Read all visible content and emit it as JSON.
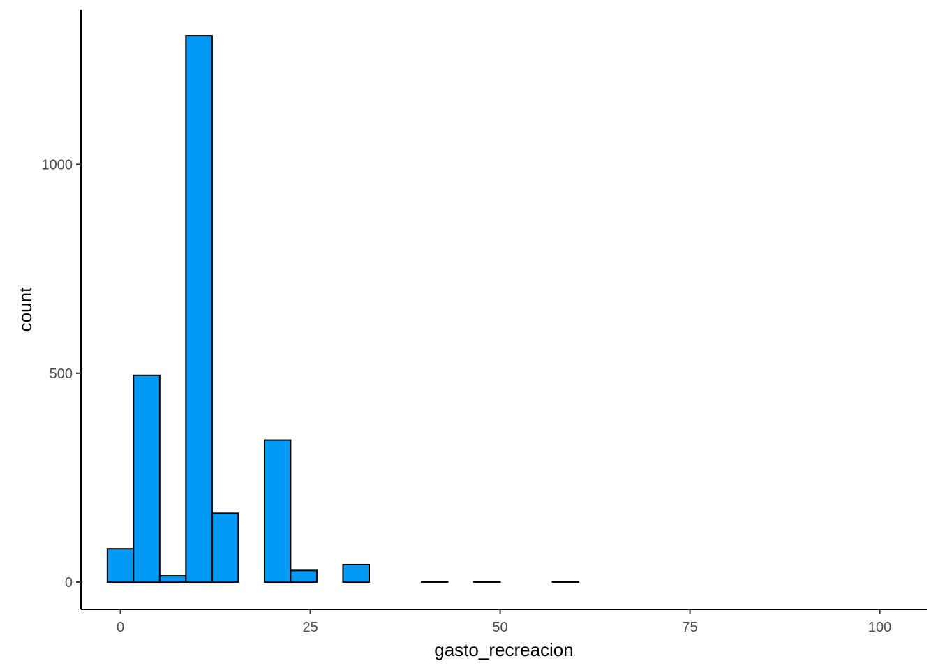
{
  "chart_data": {
    "type": "bar",
    "title": "",
    "xlabel": "gasto_recreacion",
    "ylabel": "count",
    "xlim": [
      -5.2,
      106.2
    ],
    "ylim": [
      -65,
      1370
    ],
    "x_ticks": [
      0,
      25,
      50,
      75,
      100
    ],
    "x_tick_labels": [
      "0",
      "25",
      "50",
      "75",
      "100"
    ],
    "y_ticks": [
      0,
      500,
      1000
    ],
    "y_tick_labels": [
      "0",
      "500",
      "1000"
    ],
    "bin_width": 3.45,
    "bins": [
      {
        "x0": -1.72,
        "x1": 1.72,
        "count": 80
      },
      {
        "x0": 1.72,
        "x1": 5.17,
        "count": 495
      },
      {
        "x0": 5.17,
        "x1": 8.62,
        "count": 15
      },
      {
        "x0": 8.62,
        "x1": 12.07,
        "count": 1308
      },
      {
        "x0": 12.07,
        "x1": 15.52,
        "count": 165
      },
      {
        "x0": 15.52,
        "x1": 18.97,
        "count": 0
      },
      {
        "x0": 18.97,
        "x1": 22.41,
        "count": 340
      },
      {
        "x0": 22.41,
        "x1": 25.86,
        "count": 28
      },
      {
        "x0": 25.86,
        "x1": 29.31,
        "count": 0
      },
      {
        "x0": 29.31,
        "x1": 32.76,
        "count": 42
      },
      {
        "x0": 32.76,
        "x1": 36.21,
        "count": 0
      },
      {
        "x0": 36.21,
        "x1": 39.66,
        "count": 0
      },
      {
        "x0": 39.66,
        "x1": 43.1,
        "count": 1
      },
      {
        "x0": 43.1,
        "x1": 46.55,
        "count": 0
      },
      {
        "x0": 46.55,
        "x1": 50.0,
        "count": 1
      },
      {
        "x0": 50.0,
        "x1": 53.45,
        "count": 0
      },
      {
        "x0": 53.45,
        "x1": 56.9,
        "count": 0
      },
      {
        "x0": 56.9,
        "x1": 60.34,
        "count": 1
      },
      {
        "x0": 60.34,
        "x1": 63.79,
        "count": 0
      },
      {
        "x0": 63.79,
        "x1": 67.24,
        "count": 0
      },
      {
        "x0": 67.24,
        "x1": 70.69,
        "count": 0
      },
      {
        "x0": 70.69,
        "x1": 74.14,
        "count": 0
      },
      {
        "x0": 74.14,
        "x1": 77.59,
        "count": 0
      },
      {
        "x0": 77.59,
        "x1": 81.03,
        "count": 0
      },
      {
        "x0": 81.03,
        "x1": 84.48,
        "count": 0
      },
      {
        "x0": 84.48,
        "x1": 87.93,
        "count": 0
      },
      {
        "x0": 87.93,
        "x1": 91.38,
        "count": 0
      },
      {
        "x0": 91.38,
        "x1": 94.83,
        "count": 0
      },
      {
        "x0": 94.83,
        "x1": 98.28,
        "count": 0
      },
      {
        "x0": 98.28,
        "x1": 101.72,
        "count": 0
      }
    ],
    "bar_fill": "#0099f8",
    "bar_outline": "#000000",
    "grid": false,
    "legend": "none"
  }
}
